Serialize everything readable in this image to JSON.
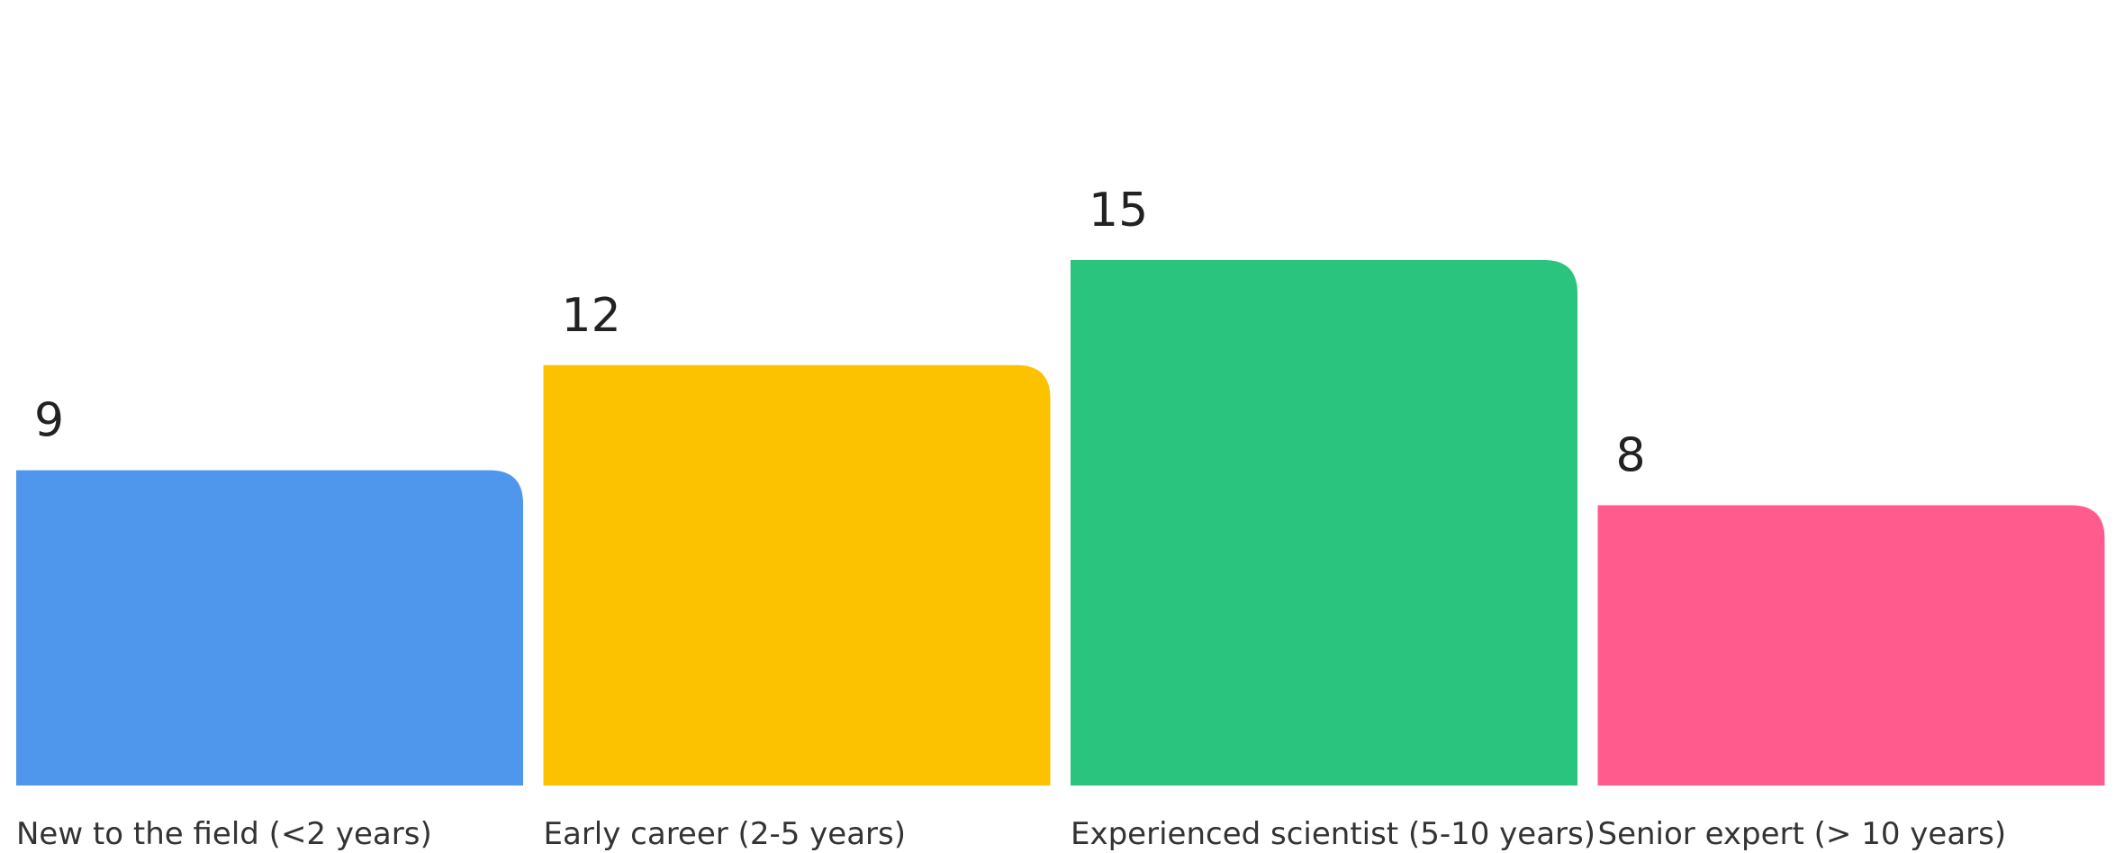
{
  "chart_data": {
    "type": "bar",
    "categories": [
      "New to the field (<2 years)",
      "Early career (2-5 years)",
      "Experienced scientist (5-10 years)",
      "Senior expert (> 10 years)"
    ],
    "values": [
      9,
      12,
      15,
      8
    ],
    "colors": [
      "#4f97ed",
      "#fcc200",
      "#2ac47e",
      "#ff5c8d"
    ]
  }
}
